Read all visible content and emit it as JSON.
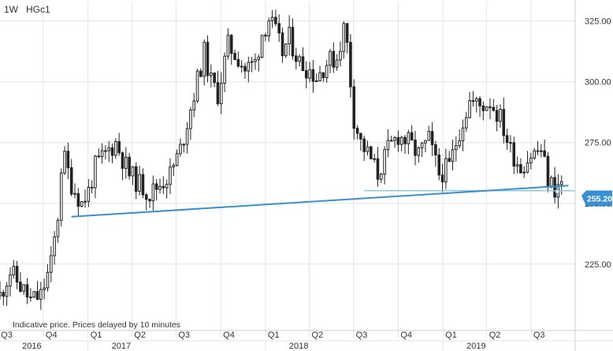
{
  "header": {
    "interval": "1W",
    "symbol": "HGc1"
  },
  "note": "Indicative price. Prices delayed by 10 minutes",
  "last_price_label": "255.20",
  "colors": {
    "candle": "#222222",
    "grid": "#e3e3e3",
    "trendline": "#3a8fd0",
    "support": "#8cc8e8",
    "price_label_bg": "#3a8fd0"
  },
  "chart_data": {
    "type": "candlestick",
    "title": "",
    "xlabel": "",
    "ylabel": "",
    "ylim": [
      198,
      333
    ],
    "xlim": [
      "2016-07-04",
      "2019-09-30"
    ],
    "grid": true,
    "y_ticks": [
      "225.00",
      "250.00",
      "275.00",
      "300.00",
      "325.00"
    ],
    "quarter_ticks": [
      {
        "date": "2016-07-01",
        "label": "Q3"
      },
      {
        "date": "2016-10-01",
        "label": "Q4"
      },
      {
        "date": "2017-01-01",
        "label": "Q1"
      },
      {
        "date": "2017-04-01",
        "label": "Q2"
      },
      {
        "date": "2017-07-01",
        "label": "Q3"
      },
      {
        "date": "2017-10-01",
        "label": "Q4"
      },
      {
        "date": "2018-01-01",
        "label": "Q1"
      },
      {
        "date": "2018-04-01",
        "label": "Q2"
      },
      {
        "date": "2018-07-01",
        "label": "Q3"
      },
      {
        "date": "2018-10-01",
        "label": "Q4"
      },
      {
        "date": "2019-01-01",
        "label": "Q1"
      },
      {
        "date": "2019-04-01",
        "label": "Q2"
      },
      {
        "date": "2019-07-01",
        "label": "Q3"
      }
    ],
    "year_ticks": [
      {
        "date": "2016-07-01",
        "label": "2016"
      },
      {
        "date": "2017-01-01",
        "label": "2017"
      },
      {
        "date": "2018-01-01",
        "label": "2018"
      },
      {
        "date": "2019-01-01",
        "label": "2019"
      }
    ],
    "price_waypoints": [
      [
        "2016-07-04",
        212
      ],
      [
        "2016-07-25",
        222
      ],
      [
        "2016-08-15",
        216
      ],
      [
        "2016-09-05",
        210
      ],
      [
        "2016-09-26",
        212
      ],
      [
        "2016-10-17",
        225
      ],
      [
        "2016-10-31",
        245
      ],
      [
        "2016-11-07",
        265
      ],
      [
        "2016-11-14",
        268
      ],
      [
        "2016-11-28",
        258
      ],
      [
        "2016-12-19",
        250
      ],
      [
        "2017-01-02",
        255
      ],
      [
        "2017-01-16",
        265
      ],
      [
        "2017-02-13",
        272
      ],
      [
        "2017-02-27",
        275
      ],
      [
        "2017-03-27",
        262
      ],
      [
        "2017-04-17",
        258
      ],
      [
        "2017-05-08",
        254
      ],
      [
        "2017-05-29",
        258
      ],
      [
        "2017-06-19",
        262
      ],
      [
        "2017-07-10",
        272
      ],
      [
        "2017-08-07",
        295
      ],
      [
        "2017-08-28",
        312
      ],
      [
        "2017-09-11",
        300
      ],
      [
        "2017-09-25",
        295
      ],
      [
        "2017-10-16",
        315
      ],
      [
        "2017-11-06",
        310
      ],
      [
        "2017-11-20",
        305
      ],
      [
        "2017-12-11",
        308
      ],
      [
        "2017-12-25",
        320
      ],
      [
        "2018-01-08",
        326
      ],
      [
        "2018-01-22",
        320
      ],
      [
        "2018-02-05",
        312
      ],
      [
        "2018-02-19",
        318
      ],
      [
        "2018-03-12",
        308
      ],
      [
        "2018-04-02",
        305
      ],
      [
        "2018-04-16",
        302
      ],
      [
        "2018-05-07",
        308
      ],
      [
        "2018-05-28",
        310
      ],
      [
        "2018-06-11",
        322
      ],
      [
        "2018-06-18",
        315
      ],
      [
        "2018-07-02",
        285
      ],
      [
        "2018-07-16",
        275
      ],
      [
        "2018-08-06",
        268
      ],
      [
        "2018-08-20",
        262
      ],
      [
        "2018-09-10",
        272
      ],
      [
        "2018-10-01",
        278
      ],
      [
        "2018-10-22",
        275
      ],
      [
        "2018-11-12",
        270
      ],
      [
        "2018-12-03",
        276
      ],
      [
        "2018-12-24",
        262
      ],
      [
        "2019-01-14",
        265
      ],
      [
        "2019-02-04",
        280
      ],
      [
        "2019-02-25",
        292
      ],
      [
        "2019-03-18",
        290
      ],
      [
        "2019-04-08",
        292
      ],
      [
        "2019-04-29",
        285
      ],
      [
        "2019-05-20",
        272
      ],
      [
        "2019-06-10",
        265
      ],
      [
        "2019-07-01",
        270
      ],
      [
        "2019-07-22",
        272
      ],
      [
        "2019-08-05",
        260
      ],
      [
        "2019-08-19",
        256
      ],
      [
        "2019-09-02",
        258
      ]
    ],
    "annotations": {
      "trendline": {
        "from": [
          "2016-11-28",
          244.5
        ],
        "to": [
          "2019-09-16",
          257.3
        ]
      },
      "support_line": {
        "from": [
          "2018-07-23",
          255.2
        ],
        "to": [
          "2019-09-30",
          255.2
        ]
      },
      "last_price": 255.2
    }
  }
}
